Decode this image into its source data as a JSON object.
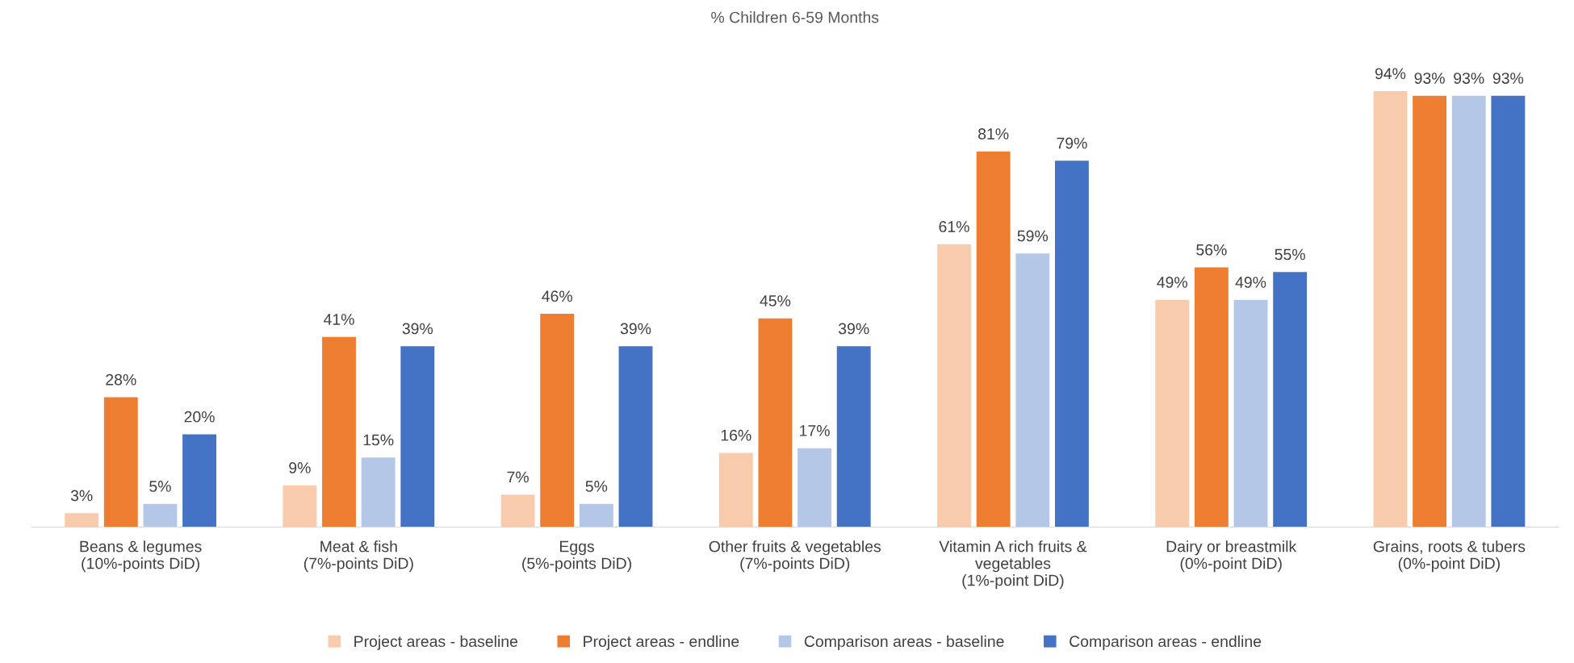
{
  "chart_data": {
    "type": "bar",
    "title": "% Children 6-59 Months",
    "categories": [
      "Beans & legumes\n(10%-points DiD)",
      "Meat & fish\n(7%-points DiD)",
      "Eggs\n(5%-points DiD)",
      "Other fruits & vegetables\n(7%-points DiD)",
      "Vitamin A rich fruits &\nvegetables\n(1%-point DiD)",
      "Dairy or breastmilk\n(0%-point DiD)",
      "Grains, roots & tubers\n(0%-point DiD)"
    ],
    "series": [
      {
        "name": "Project areas - baseline",
        "color": "#f8cbad",
        "values": [
          3,
          9,
          7,
          16,
          61,
          49,
          94
        ],
        "value_labels": [
          "3%",
          "9%",
          "7%",
          "16%",
          "61%",
          "49%",
          "94%"
        ]
      },
      {
        "name": "Project areas - endline",
        "color": "#ed7d31",
        "values": [
          28,
          41,
          46,
          45,
          81,
          56,
          93
        ],
        "value_labels": [
          "28%",
          "41%",
          "46%",
          "45%",
          "81%",
          "56%",
          "93%"
        ]
      },
      {
        "name": "Comparison areas - baseline",
        "color": "#b4c7e7",
        "values": [
          5,
          15,
          5,
          17,
          59,
          49,
          93
        ],
        "value_labels": [
          "5%",
          "15%",
          "5%",
          "17%",
          "59%",
          "49%",
          "93%"
        ]
      },
      {
        "name": "Comparison areas - endline",
        "color": "#4472c4",
        "values": [
          20,
          39,
          39,
          39,
          79,
          55,
          93
        ],
        "value_labels": [
          "20%",
          "39%",
          "39%",
          "39%",
          "79%",
          "55%",
          "93%"
        ]
      }
    ],
    "tick_labels": "x",
    "grid": false,
    "legend": "bottom"
  }
}
